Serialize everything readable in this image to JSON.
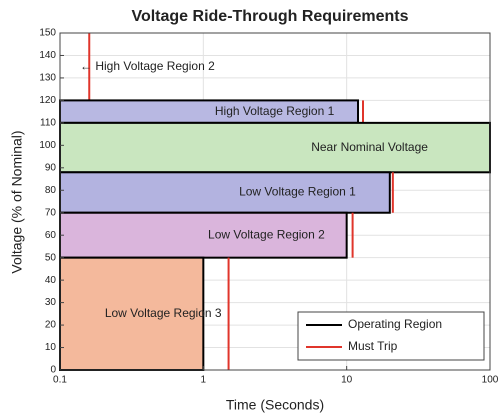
{
  "chart_data": {
    "type": "region",
    "title": "Voltage Ride-Through Requirements",
    "xlabel": "Time (Seconds)",
    "ylabel": "Voltage (% of Nominal)",
    "xscale": "log",
    "xlim": [
      0.1,
      100
    ],
    "xticks": [
      0.1,
      1,
      10,
      100
    ],
    "ylim": [
      0,
      150
    ],
    "yticks": [
      0,
      10,
      20,
      30,
      40,
      50,
      60,
      70,
      80,
      90,
      100,
      110,
      120,
      130,
      140,
      150
    ],
    "grid": true,
    "legend_position": "lower right",
    "legend": [
      {
        "name": "Operating Region",
        "color": "#000000"
      },
      {
        "name": "Must Trip",
        "color": "#e0352b"
      }
    ],
    "regions": [
      {
        "label": "← High Voltage Region 2",
        "ymin": 120,
        "ymax": 150,
        "trip": 0.16
      },
      {
        "label": "High Voltage Region 1",
        "ymin": 110,
        "ymax": 120,
        "x_end": 12,
        "trip": 13,
        "color": "#b8b8e2"
      },
      {
        "label": "Near Nominal Voltage",
        "ymin": 88,
        "ymax": 110,
        "x_end": 100,
        "color": "#c9e6bf"
      },
      {
        "label": "Low Voltage Region 1",
        "ymin": 70,
        "ymax": 88,
        "x_end": 20,
        "trip": 21,
        "color": "#b3b3e0"
      },
      {
        "label": "Low Voltage Region 2",
        "ymin": 50,
        "ymax": 70,
        "x_end": 10,
        "trip": 11,
        "color": "#dab5dc"
      },
      {
        "label": "Low Voltage Region 3",
        "ymin": 0,
        "ymax": 50,
        "x_end": 1,
        "trip": 1.5,
        "color": "#f4b99c"
      }
    ]
  }
}
